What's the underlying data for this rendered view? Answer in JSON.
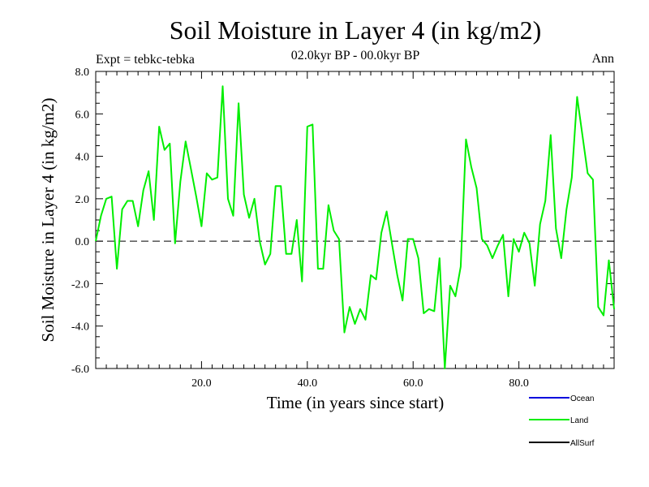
{
  "chart_data": {
    "type": "line",
    "title": "Soil Moisture in Layer 4 (in kg/m2)",
    "subtitle": "02.0kyr BP - 00.0kyr BP",
    "expt_label": "Expt = tebkc-tebka",
    "season_label": "Ann",
    "xlabel": "Time (in years since start)",
    "ylabel": "Soil Moisture in Layer 4 (in kg/m2)",
    "xlim": [
      0,
      98
    ],
    "ylim": [
      -6,
      8
    ],
    "x_ticks": [
      20,
      40,
      60,
      80
    ],
    "x_tick_labels": [
      "20.0",
      "40.0",
      "60.0",
      "80.0"
    ],
    "y_ticks": [
      -6,
      -4,
      -2,
      0,
      2,
      4,
      6,
      8
    ],
    "y_tick_labels": [
      "-6.0",
      "-4.0",
      "-2.0",
      "0.0",
      "2.0",
      "4.0",
      "6.0",
      "8.0"
    ],
    "zero_line": "dashed",
    "legend": [
      {
        "name": "Ocean",
        "color": "#0000dd"
      },
      {
        "name": "Land",
        "color": "#00ee00"
      },
      {
        "name": "AllSurf",
        "color": "#000000"
      }
    ],
    "series": [
      {
        "name": "Land",
        "color": "#00ee00",
        "x": [
          0,
          1,
          2,
          3,
          4,
          5,
          6,
          7,
          8,
          9,
          10,
          11,
          12,
          13,
          14,
          15,
          16,
          17,
          18,
          19,
          20,
          21,
          22,
          23,
          24,
          25,
          26,
          27,
          28,
          29,
          30,
          31,
          32,
          33,
          34,
          35,
          36,
          37,
          38,
          39,
          40,
          41,
          42,
          43,
          44,
          45,
          46,
          47,
          48,
          49,
          50,
          51,
          52,
          53,
          54,
          55,
          56,
          57,
          58,
          59,
          60,
          61,
          62,
          63,
          64,
          65,
          66,
          67,
          68,
          69,
          70,
          71,
          72,
          73,
          74,
          75,
          76,
          77,
          78,
          79,
          80,
          81,
          82,
          83,
          84,
          85,
          86,
          87,
          88,
          89,
          90,
          91,
          92,
          93,
          94,
          95,
          96,
          97,
          98
        ],
        "values": [
          0.0,
          1.2,
          2.0,
          2.1,
          -1.3,
          1.5,
          1.9,
          1.9,
          0.7,
          2.4,
          3.3,
          1.0,
          5.4,
          4.3,
          4.6,
          -0.1,
          2.8,
          4.7,
          3.4,
          2.1,
          0.7,
          3.2,
          2.9,
          3.0,
          7.3,
          2.0,
          1.2,
          6.5,
          2.2,
          1.1,
          2.0,
          0.0,
          -1.1,
          -0.6,
          2.6,
          2.6,
          -0.6,
          -0.6,
          1.0,
          -1.9,
          5.4,
          5.5,
          -1.3,
          -1.3,
          1.7,
          0.5,
          0.1,
          -4.3,
          -3.1,
          -3.9,
          -3.2,
          -3.7,
          -1.6,
          -1.8,
          0.4,
          1.4,
          -0.1,
          -1.6,
          -2.8,
          0.1,
          0.1,
          -0.8,
          -3.4,
          -3.2,
          -3.3,
          -0.8,
          -6.0,
          -2.1,
          -2.6,
          -1.2,
          4.8,
          3.5,
          2.5,
          0.1,
          -0.2,
          -0.8,
          -0.2,
          0.3,
          -2.6,
          0.1,
          -0.5,
          0.4,
          -0.1,
          -2.1,
          0.8,
          1.9,
          5.0,
          0.6,
          -0.8,
          1.5,
          3.0,
          6.8,
          5.0,
          3.2,
          2.9,
          -3.1,
          -3.5,
          -0.9,
          -3.2
        ]
      }
    ]
  }
}
